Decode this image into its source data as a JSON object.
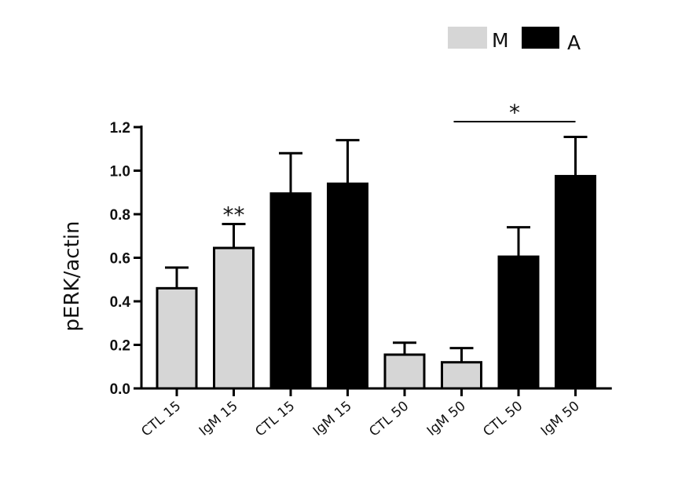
{
  "chart_data": {
    "type": "bar",
    "ylabel": "pERK/actin",
    "xlabel": "",
    "ylim": [
      0,
      1.2
    ],
    "yticks": [
      "0.0",
      "0.2",
      "0.4",
      "0.6",
      "0.8",
      "1.0",
      "1.2"
    ],
    "grid": false,
    "legend_position": "top-right",
    "categories": [
      "CTL 15",
      "IgM 15",
      "CTL 15",
      "IgM 15",
      "CTL 50",
      "IgM 50",
      "CTL 50",
      "IgM 50"
    ],
    "groups": [
      "M",
      "M",
      "A",
      "A",
      "M",
      "M",
      "A",
      "A"
    ],
    "values": [
      0.46,
      0.645,
      0.895,
      0.94,
      0.155,
      0.12,
      0.605,
      0.975
    ],
    "errors": [
      0.095,
      0.11,
      0.185,
      0.2,
      0.055,
      0.065,
      0.135,
      0.18
    ],
    "series": [
      {
        "name": "M",
        "color": "#d6d6d6"
      },
      {
        "name": "A",
        "color": "#000000"
      }
    ],
    "annotations": [
      {
        "text": "**",
        "category_index": 1
      },
      {
        "text": "*",
        "from_index": 5,
        "to_index": 7
      }
    ]
  }
}
